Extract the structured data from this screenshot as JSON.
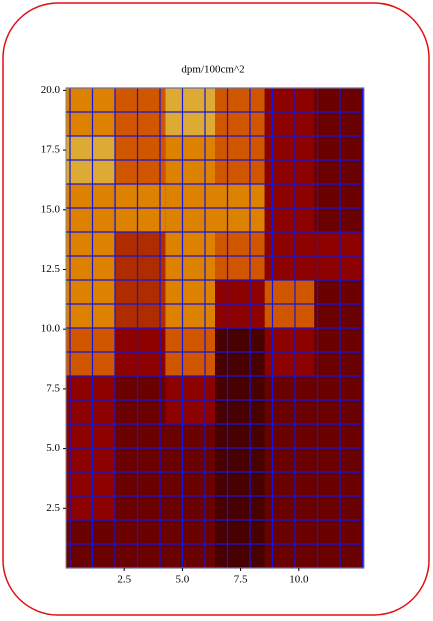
{
  "chart_data": {
    "type": "heatmap",
    "title": "dpm/100cm^2",
    "xlim": [
      0,
      12.8
    ],
    "ylim": [
      0,
      20.1
    ],
    "xticks": [
      2.5,
      {
        "value": 5,
        "label": "5.0"
      },
      7.5,
      {
        "value": 10,
        "label": "10.0"
      }
    ],
    "yticks": [
      2.5,
      {
        "value": 5,
        "label": "5.0"
      },
      7.5,
      {
        "value": 10,
        "label": "10.0"
      },
      12.5,
      {
        "value": 15,
        "label": "15.0"
      },
      17.5,
      {
        "value": 20,
        "label": "20.0"
      }
    ],
    "z": [
      [
        0.6,
        0.5,
        0.7,
        0.5,
        0.3,
        0.2
      ],
      [
        0.7,
        0.5,
        0.6,
        0.5,
        0.3,
        0.2
      ],
      [
        0.6,
        0.6,
        0.6,
        0.6,
        0.3,
        0.2
      ],
      [
        0.6,
        0.4,
        0.6,
        0.5,
        0.3,
        0.3
      ],
      [
        0.6,
        0.4,
        0.6,
        0.3,
        0.5,
        0.2
      ],
      [
        0.5,
        0.3,
        0.5,
        0.1,
        0.3,
        0.2
      ],
      [
        0.3,
        0.2,
        0.3,
        0.1,
        0.2,
        0.2
      ],
      [
        0.3,
        0.2,
        0.2,
        0.1,
        0.2,
        0.2
      ],
      [
        0.3,
        0.2,
        0.2,
        0.1,
        0.2,
        0.2
      ],
      [
        0.2,
        0.2,
        0.2,
        0.1,
        0.2,
        0.2
      ]
    ]
  }
}
